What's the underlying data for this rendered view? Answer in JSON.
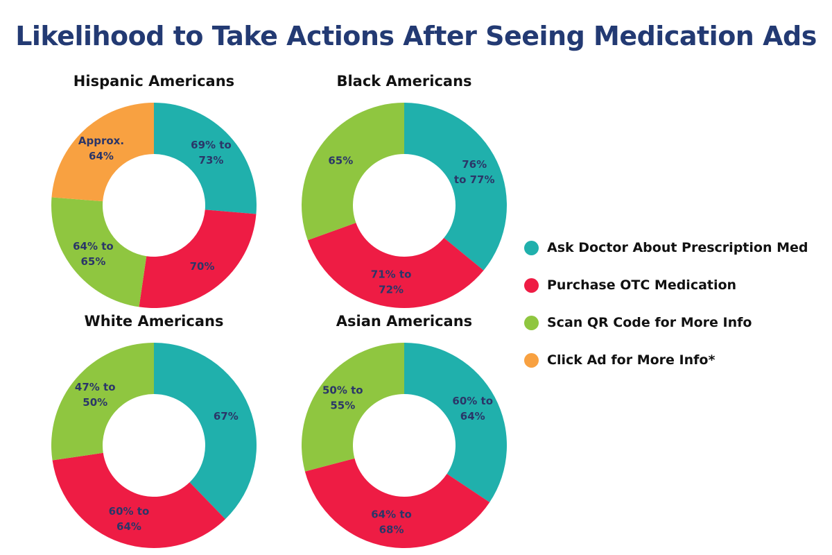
{
  "title": "Likelihood to Take Actions After Seeing Medication Ads",
  "chart_data": {
    "type": "pie",
    "variant": "donut",
    "categories": [
      "Ask Doctor About Prescription Med",
      "Purchase OTC Medication",
      "Scan QR Code for More Info",
      "Click Ad for More Info*"
    ],
    "colors": [
      "#20b0ac",
      "#ee1c44",
      "#8fc640",
      "#f8a141"
    ],
    "legend_position": "right",
    "charts": [
      {
        "title": "Hispanic Americans",
        "values": [
          71,
          70,
          64.5,
          64
        ],
        "labels": [
          "69% to\n73%",
          "70%",
          "64% to\n65%",
          "Approx.\n64%"
        ]
      },
      {
        "title": "Black Americans",
        "values": [
          76.5,
          71.5,
          65
        ],
        "labels": [
          "76%\nto 77%",
          "71% to\n72%",
          "65%"
        ]
      },
      {
        "title": "White Americans",
        "values": [
          67,
          62,
          48.5
        ],
        "labels": [
          "67%",
          "60% to\n64%",
          "47% to\n50%"
        ]
      },
      {
        "title": "Asian Americans",
        "values": [
          62,
          66,
          52.5
        ],
        "labels": [
          "60% to\n64%",
          "64% to\n68%",
          "50% to\n55%"
        ]
      }
    ]
  }
}
